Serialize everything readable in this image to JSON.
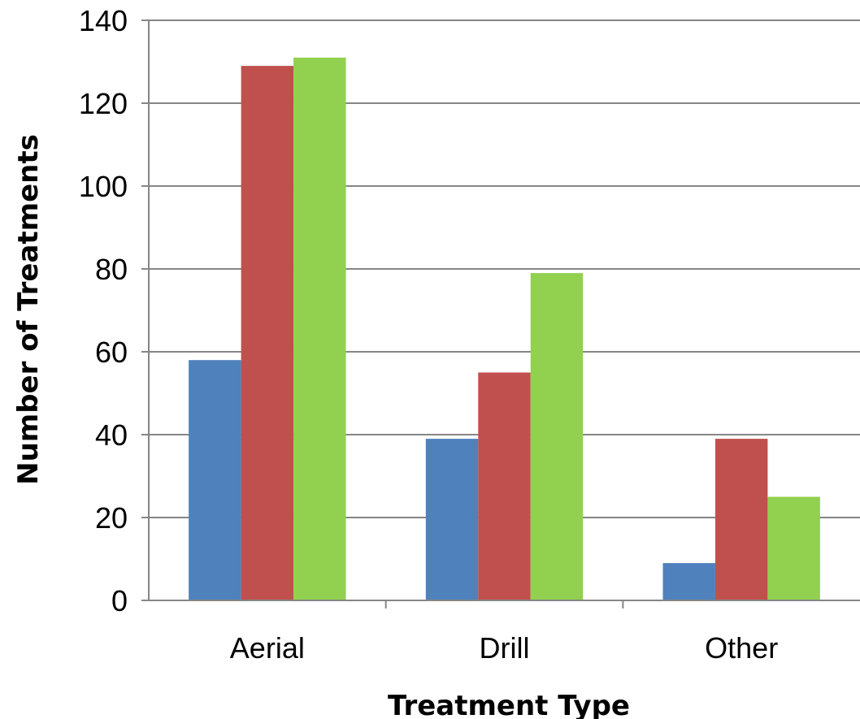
{
  "chart_data": {
    "type": "bar",
    "title": "",
    "xlabel": "Treatment Type",
    "ylabel": "Number of Treatments",
    "categories": [
      "Aerial",
      "Drill",
      "Other"
    ],
    "series": [
      {
        "values": [
          58,
          39,
          9
        ],
        "color": "#4F81BD"
      },
      {
        "values": [
          129,
          55,
          39
        ],
        "color": "#C0504D"
      },
      {
        "values": [
          131,
          79,
          25
        ],
        "color": "#92D050"
      }
    ],
    "ylim": [
      0,
      140
    ],
    "yticks": [
      0,
      20,
      40,
      60,
      80,
      100,
      120,
      140
    ],
    "grid": true,
    "legend": "none"
  }
}
